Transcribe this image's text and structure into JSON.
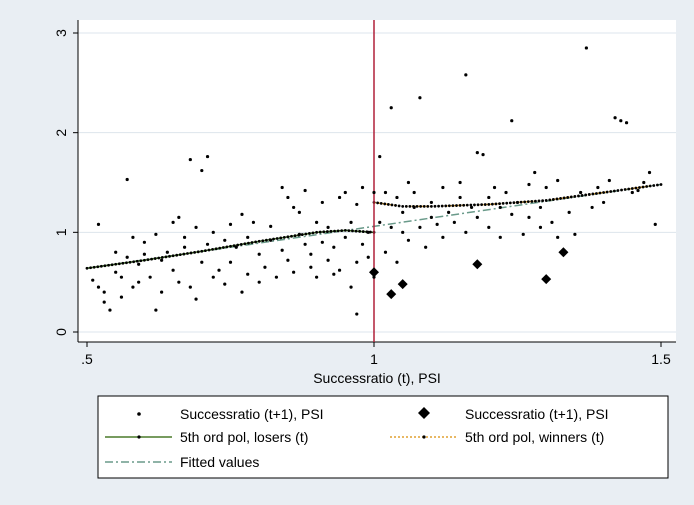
{
  "chart_data": {
    "type": "scatter",
    "xlabel": "Successratio (t), PSI",
    "ylabel": "",
    "xlim": [
      0.5,
      1.5
    ],
    "ylim": [
      0,
      3
    ],
    "x_ticks": [
      ".5",
      "1",
      "1.5"
    ],
    "y_ticks": [
      "0",
      "1",
      "2",
      "3"
    ],
    "grid": "horizontal",
    "cutoff_line_x": 1,
    "colors": {
      "background": "#e9eef3",
      "plot_area": "#ffffff",
      "cutoff_line": "#b0203a",
      "losers_fit": "#4a7a2a",
      "winners_fit": "#e0a030",
      "fitted_values": "#6a9a8a",
      "grid": "#dde5ec"
    },
    "legend_position": "bottom",
    "legend": [
      {
        "label": "Successratio (t+1), PSI",
        "marker": "small-dot"
      },
      {
        "label": "Successratio (t+1), PSI",
        "marker": "diamond"
      },
      {
        "label": "5th ord pol, losers (t)",
        "marker": "solid-line"
      },
      {
        "label": "5th ord pol, winners (t)",
        "marker": "dotted-line"
      },
      {
        "label": "Fitted values",
        "marker": "dashdot-line"
      }
    ],
    "scatter_points": [
      [
        0.51,
        0.52
      ],
      [
        0.52,
        1.08
      ],
      [
        0.52,
        0.45
      ],
      [
        0.53,
        0.4
      ],
      [
        0.53,
        0.3
      ],
      [
        0.54,
        0.22
      ],
      [
        0.55,
        0.8
      ],
      [
        0.55,
        0.6
      ],
      [
        0.56,
        0.35
      ],
      [
        0.56,
        0.55
      ],
      [
        0.57,
        1.53
      ],
      [
        0.57,
        0.75
      ],
      [
        0.58,
        0.45
      ],
      [
        0.58,
        0.95
      ],
      [
        0.59,
        0.68
      ],
      [
        0.59,
        0.5
      ],
      [
        0.6,
        0.9
      ],
      [
        0.6,
        0.78
      ],
      [
        0.61,
        0.55
      ],
      [
        0.62,
        0.22
      ],
      [
        0.62,
        0.98
      ],
      [
        0.63,
        0.72
      ],
      [
        0.63,
        0.4
      ],
      [
        0.64,
        0.8
      ],
      [
        0.65,
        1.1
      ],
      [
        0.65,
        0.62
      ],
      [
        0.66,
        0.5
      ],
      [
        0.66,
        1.15
      ],
      [
        0.67,
        0.95
      ],
      [
        0.67,
        0.85
      ],
      [
        0.68,
        1.73
      ],
      [
        0.68,
        0.45
      ],
      [
        0.69,
        0.33
      ],
      [
        0.69,
        1.05
      ],
      [
        0.7,
        0.7
      ],
      [
        0.7,
        1.62
      ],
      [
        0.71,
        1.76
      ],
      [
        0.71,
        0.88
      ],
      [
        0.72,
        0.55
      ],
      [
        0.72,
        1.0
      ],
      [
        0.73,
        0.62
      ],
      [
        0.74,
        0.92
      ],
      [
        0.74,
        0.48
      ],
      [
        0.75,
        1.08
      ],
      [
        0.75,
        0.7
      ],
      [
        0.76,
        0.85
      ],
      [
        0.77,
        1.18
      ],
      [
        0.77,
        0.4
      ],
      [
        0.78,
        0.95
      ],
      [
        0.78,
        0.58
      ],
      [
        0.79,
        1.1
      ],
      [
        0.8,
        0.78
      ],
      [
        0.8,
        0.5
      ],
      [
        0.81,
        0.65
      ],
      [
        0.82,
        0.92
      ],
      [
        0.82,
        1.06
      ],
      [
        0.83,
        0.55
      ],
      [
        0.84,
        1.45
      ],
      [
        0.84,
        0.82
      ],
      [
        0.85,
        1.35
      ],
      [
        0.85,
        0.72
      ],
      [
        0.86,
        1.25
      ],
      [
        0.86,
        0.6
      ],
      [
        0.87,
        1.2
      ],
      [
        0.87,
        0.98
      ],
      [
        0.88,
        0.88
      ],
      [
        0.88,
        1.42
      ],
      [
        0.89,
        0.65
      ],
      [
        0.89,
        0.78
      ],
      [
        0.9,
        1.1
      ],
      [
        0.9,
        0.55
      ],
      [
        0.91,
        0.9
      ],
      [
        0.91,
        1.3
      ],
      [
        0.92,
        0.72
      ],
      [
        0.92,
        1.05
      ],
      [
        0.93,
        0.58
      ],
      [
        0.93,
        0.85
      ],
      [
        0.94,
        1.35
      ],
      [
        0.94,
        0.62
      ],
      [
        0.95,
        0.95
      ],
      [
        0.95,
        1.4
      ],
      [
        0.96,
        0.45
      ],
      [
        0.96,
        1.1
      ],
      [
        0.97,
        0.7
      ],
      [
        0.97,
        1.28
      ],
      [
        0.97,
        0.18
      ],
      [
        0.98,
        0.88
      ],
      [
        0.98,
        1.45
      ],
      [
        0.99,
        1.0
      ],
      [
        0.99,
        0.75
      ],
      [
        1.0,
        1.4
      ],
      [
        1.0,
        0.55
      ],
      [
        1.01,
        1.1
      ],
      [
        1.01,
        1.76
      ],
      [
        1.02,
        1.4
      ],
      [
        1.02,
        0.8
      ],
      [
        1.03,
        2.25
      ],
      [
        1.03,
        1.05
      ],
      [
        1.04,
        1.35
      ],
      [
        1.04,
        0.7
      ],
      [
        1.05,
        1.2
      ],
      [
        1.05,
        1.0
      ],
      [
        1.06,
        1.5
      ],
      [
        1.06,
        0.92
      ],
      [
        1.07,
        1.4
      ],
      [
        1.07,
        1.25
      ],
      [
        1.08,
        2.35
      ],
      [
        1.08,
        1.05
      ],
      [
        1.09,
        0.85
      ],
      [
        1.1,
        1.3
      ],
      [
        1.1,
        1.15
      ],
      [
        1.11,
        1.08
      ],
      [
        1.12,
        1.45
      ],
      [
        1.12,
        0.95
      ],
      [
        1.13,
        1.2
      ],
      [
        1.14,
        1.1
      ],
      [
        1.15,
        1.5
      ],
      [
        1.15,
        1.35
      ],
      [
        1.16,
        2.58
      ],
      [
        1.16,
        1.0
      ],
      [
        1.17,
        1.25
      ],
      [
        1.18,
        1.8
      ],
      [
        1.18,
        1.15
      ],
      [
        1.19,
        1.78
      ],
      [
        1.2,
        1.05
      ],
      [
        1.2,
        1.35
      ],
      [
        1.21,
        1.45
      ],
      [
        1.22,
        0.95
      ],
      [
        1.22,
        1.25
      ],
      [
        1.23,
        1.4
      ],
      [
        1.24,
        2.12
      ],
      [
        1.24,
        1.18
      ],
      [
        1.25,
        1.3
      ],
      [
        1.26,
        0.98
      ],
      [
        1.27,
        1.48
      ],
      [
        1.27,
        1.15
      ],
      [
        1.28,
        1.6
      ],
      [
        1.29,
        1.25
      ],
      [
        1.29,
        1.05
      ],
      [
        1.3,
        1.45
      ],
      [
        1.31,
        1.1
      ],
      [
        1.32,
        0.95
      ],
      [
        1.32,
        1.52
      ],
      [
        1.33,
        0.8
      ],
      [
        1.34,
        1.2
      ],
      [
        1.35,
        0.98
      ],
      [
        1.36,
        1.4
      ],
      [
        1.37,
        2.85
      ],
      [
        1.38,
        1.25
      ],
      [
        1.39,
        1.45
      ],
      [
        1.4,
        1.3
      ],
      [
        1.41,
        1.52
      ],
      [
        1.42,
        2.15
      ],
      [
        1.43,
        2.12
      ],
      [
        1.44,
        2.1
      ],
      [
        1.45,
        1.4
      ],
      [
        1.46,
        1.42
      ],
      [
        1.47,
        1.5
      ],
      [
        1.48,
        1.6
      ],
      [
        1.49,
        1.08
      ]
    ],
    "diamond_points": [
      [
        1.0,
        0.6
      ],
      [
        1.03,
        0.38
      ],
      [
        1.05,
        0.48
      ],
      [
        1.18,
        0.68
      ],
      [
        1.3,
        0.53
      ],
      [
        1.33,
        0.8
      ]
    ],
    "fit_losers": [
      [
        0.5,
        0.64
      ],
      [
        0.6,
        0.72
      ],
      [
        0.7,
        0.81
      ],
      [
        0.8,
        0.91
      ],
      [
        0.9,
        1.0
      ],
      [
        0.95,
        1.02
      ],
      [
        1.0,
        1.0
      ]
    ],
    "fit_winners": [
      [
        1.0,
        1.3
      ],
      [
        1.05,
        1.26
      ],
      [
        1.1,
        1.26
      ],
      [
        1.2,
        1.28
      ],
      [
        1.3,
        1.32
      ],
      [
        1.4,
        1.4
      ],
      [
        1.5,
        1.48
      ]
    ],
    "fitted_values": [
      [
        0.5,
        0.64
      ],
      [
        1.5,
        1.48
      ]
    ]
  }
}
